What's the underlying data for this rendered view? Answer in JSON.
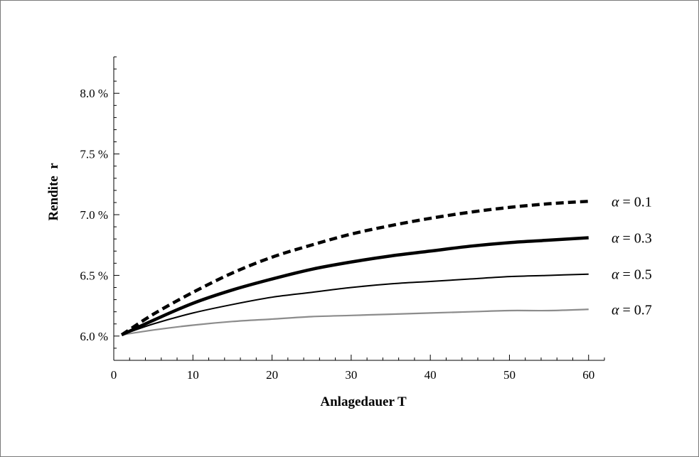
{
  "chart_data": {
    "type": "line",
    "xlabel": "Anlagedauer T",
    "ylabel": "Rendite  r",
    "xlim": [
      0,
      62
    ],
    "ylim": [
      5.8,
      8.3
    ],
    "x_ticks": [
      0,
      10,
      20,
      30,
      40,
      50,
      60
    ],
    "x_tick_labels": [
      "0",
      "10",
      "20",
      "30",
      "40",
      "50",
      "60"
    ],
    "y_ticks": [
      6.0,
      6.5,
      7.0,
      7.5,
      8.0
    ],
    "y_tick_labels": [
      "6.0 %",
      "6.5 %",
      "7.0 %",
      "7.5 %",
      "8.0 %"
    ],
    "grid": false,
    "legend": "inline-right",
    "x": [
      1,
      5,
      10,
      15,
      20,
      25,
      30,
      35,
      40,
      45,
      50,
      55,
      60
    ],
    "series": [
      {
        "name": "α = 0.1",
        "alpha_symbol": "α",
        "alpha_value": "= 0.1",
        "style": "dashed-thick",
        "color": "#000000",
        "values": [
          6.01,
          6.18,
          6.36,
          6.52,
          6.65,
          6.75,
          6.84,
          6.91,
          6.97,
          7.02,
          7.06,
          7.09,
          7.11
        ]
      },
      {
        "name": "α = 0.3",
        "alpha_symbol": "α",
        "alpha_value": "= 0.3",
        "style": "solid-thick",
        "color": "#000000",
        "values": [
          6.01,
          6.13,
          6.27,
          6.38,
          6.47,
          6.55,
          6.61,
          6.66,
          6.7,
          6.74,
          6.77,
          6.79,
          6.81
        ]
      },
      {
        "name": "α = 0.5",
        "alpha_symbol": "α",
        "alpha_value": "= 0.5",
        "style": "solid-thin",
        "color": "#000000",
        "values": [
          6.01,
          6.1,
          6.19,
          6.26,
          6.32,
          6.36,
          6.4,
          6.43,
          6.45,
          6.47,
          6.49,
          6.5,
          6.51
        ]
      },
      {
        "name": "α = 0.7",
        "alpha_symbol": "α",
        "alpha_value": "= 0.7",
        "style": "solid-gray",
        "color": "#8c8c8c",
        "values": [
          6.01,
          6.05,
          6.09,
          6.12,
          6.14,
          6.16,
          6.17,
          6.18,
          6.19,
          6.2,
          6.21,
          6.21,
          6.22
        ]
      }
    ]
  }
}
